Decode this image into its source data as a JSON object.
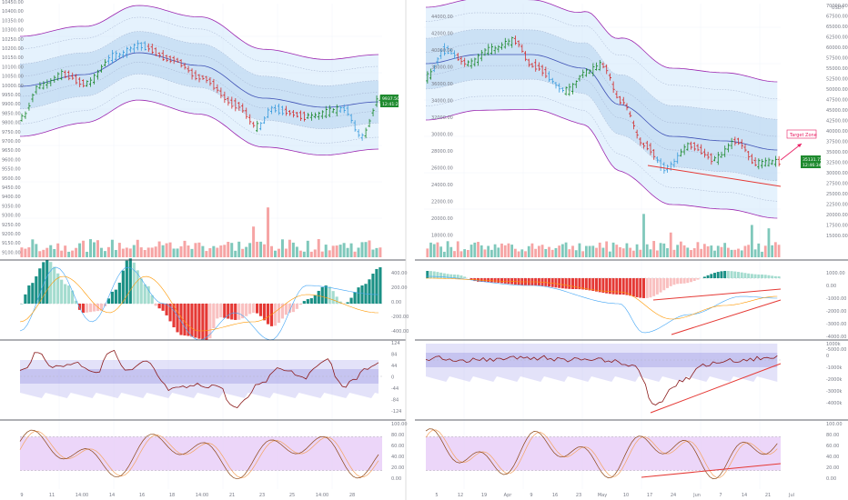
{
  "colors": {
    "up": "#1e8a2e",
    "down": "#d32f2f",
    "neutral": "#3c9ddd",
    "band_outer": "#9c27b0",
    "band_fill": "#cfe8fb",
    "band_inner_fill": "#b7d4ef",
    "mid_line": "#3f51b5",
    "vol_up": "#7fc8bb",
    "vol_down": "#f6a4a4",
    "hist_up_strong": "#1a9085",
    "hist_up_weak": "#a4dccf",
    "hist_down_strong": "#e53935",
    "hist_down_weak": "#f9c0c0",
    "osc_line": "#8b1a1a",
    "osc_band": "#b9b6ef",
    "stoch_fill": "#e6c8f7",
    "stoch_k": "#8b4513",
    "stoch_d": "#f4a460",
    "last_price_bg": "#1e8a2e",
    "target_zone": "#e91e63",
    "trendline": "#e53935"
  },
  "chart_data": [
    {
      "type": "candlestick",
      "panel": "left",
      "y_ticks": [
        "10450.00",
        "10400.00",
        "10350.00",
        "10300.00",
        "10250.00",
        "10200.00",
        "10150.00",
        "10100.00",
        "10050.00",
        "10000.00",
        "9950.00",
        "9900.00",
        "9850.00",
        "9800.00",
        "9750.00",
        "9700.00",
        "9650.00",
        "9600.00",
        "9550.00",
        "9500.00",
        "9450.00",
        "9400.00",
        "9350.00",
        "9300.00",
        "9250.00",
        "9200.00",
        "9150.00",
        "9100.00"
      ],
      "x_ticks": [
        "9",
        "11",
        "14:00",
        "14",
        "16",
        "18",
        "14:00",
        "21",
        "23",
        "25",
        "14:00",
        "28"
      ],
      "last_price_label": "9937.50",
      "last_price_time": "12:41:26",
      "osc1_ticks": [
        "400.00",
        "200.00",
        "0.00",
        "-200.00",
        "-400.00"
      ],
      "osc2_ticks": [
        "124",
        "84",
        "44",
        "0",
        "-44",
        "-84",
        "-124"
      ],
      "stoch_ticks": [
        "100.00",
        "80.00",
        "60.00",
        "40.00",
        "20.00",
        "0.00"
      ]
    },
    {
      "type": "candlestick",
      "panel": "right",
      "currency": "USDT",
      "y_ticks": [
        "70000.00",
        "67500.00",
        "65000.00",
        "62500.00",
        "60000.00",
        "57500.00",
        "55000.00",
        "52500.00",
        "50000.00",
        "47500.00",
        "45000.00",
        "42500.00",
        "40000.00",
        "37500.00",
        "35000.00",
        "32500.00",
        "30000.00",
        "27500.00",
        "25000.00",
        "22500.00",
        "20000.00",
        "17500.00",
        "15000.00"
      ],
      "inner_ticks": [
        "44000.00",
        "42000.00",
        "40000.00",
        "38000.00",
        "36000.00",
        "34000.00",
        "32000.00",
        "30000.00",
        "28000.00",
        "26000.00",
        "24000.00",
        "22000.00",
        "20000.00",
        "18000.00"
      ],
      "x_ticks": [
        "5",
        "12",
        "19",
        "Apr",
        "9",
        "16",
        "23",
        "May",
        "10",
        "17",
        "24",
        "Jun",
        "7",
        "14",
        "21",
        "Jul"
      ],
      "last_price_label": "35131.72",
      "last_price_time": "12:46:34",
      "annotation": "Target Zone",
      "osc1_ticks": [
        "1000.00",
        "0.00",
        "-1000.00",
        "-2000.00",
        "-3000.00",
        "-4000.00",
        "-5000.00"
      ],
      "osc2_ticks": [
        "1000k",
        "0",
        "-1000k",
        "-2000k",
        "-3000k",
        "-4000k"
      ],
      "stoch_ticks": [
        "100.00",
        "80.00",
        "60.00",
        "40.00",
        "20.00",
        "0.00"
      ]
    }
  ]
}
